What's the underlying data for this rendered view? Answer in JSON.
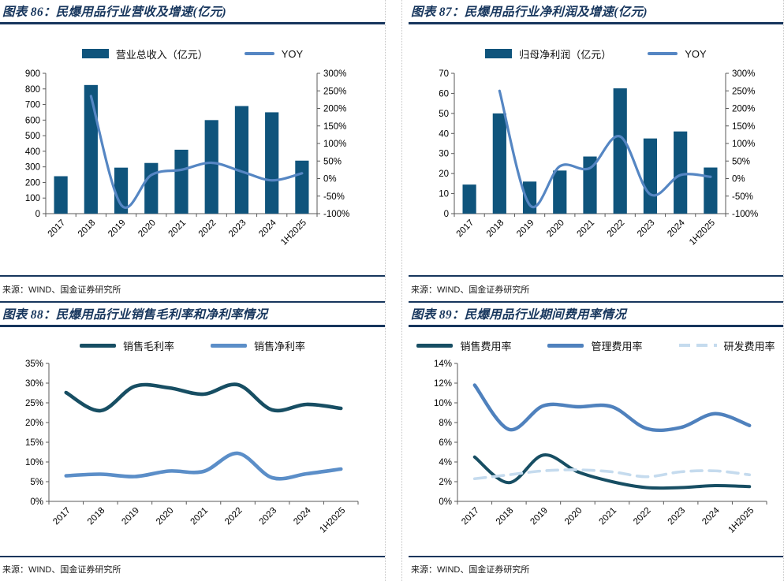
{
  "page": {
    "border_color": "#17365d",
    "divider_color": "#c4c4c4",
    "background": "#ffffff"
  },
  "source_label": "来源：WIND、国金证券研究所",
  "chart_data": [
    {
      "title": "图表 86：民爆用品行业营收及增速(亿元)",
      "source": "来源：WIND、国金证券研究所",
      "type": "bar-line",
      "categories": [
        "2017",
        "2018",
        "2019",
        "2020",
        "2021",
        "2022",
        "2023",
        "2024",
        "1H2025"
      ],
      "left_axis": {
        "min": 0,
        "max": 900,
        "step": 100,
        "format": "number"
      },
      "right_axis": {
        "min": -100,
        "max": 300,
        "step": 50,
        "format": "percent"
      },
      "legend_position": "top",
      "grid": false,
      "series": [
        {
          "name": "营业总收入（亿元）",
          "type": "bar",
          "axis": "left",
          "color": "#0f547c",
          "thickness": 0,
          "values": [
            240,
            825,
            295,
            325,
            410,
            600,
            690,
            650,
            340
          ]
        },
        {
          "name": "YOY",
          "type": "line",
          "axis": "right",
          "color": "#5586c3",
          "thickness": 3.2,
          "dash": false,
          "values": [
            null,
            235,
            -75,
            10,
            25,
            45,
            20,
            -5,
            15
          ]
        }
      ]
    },
    {
      "title": "图表 87：民爆用品行业净利润及增速(亿元)",
      "source": "来源：WIND、国金证券研究所",
      "type": "bar-line",
      "categories": [
        "2017",
        "2018",
        "2019",
        "2020",
        "2021",
        "2022",
        "2023",
        "2024",
        "1H2025"
      ],
      "left_axis": {
        "min": 0,
        "max": 70,
        "step": 10,
        "format": "number"
      },
      "right_axis": {
        "min": -100,
        "max": 300,
        "step": 50,
        "format": "percent"
      },
      "legend_position": "top",
      "grid": false,
      "series": [
        {
          "name": "归母净利润（亿元）",
          "type": "bar",
          "axis": "left",
          "color": "#0f547c",
          "thickness": 0,
          "values": [
            14.5,
            50,
            16,
            21.5,
            28.5,
            62.5,
            37.5,
            41,
            23
          ]
        },
        {
          "name": "YOY",
          "type": "line",
          "axis": "right",
          "color": "#5586c3",
          "thickness": 3.2,
          "dash": false,
          "values": [
            null,
            250,
            -75,
            35,
            30,
            120,
            -45,
            10,
            5
          ]
        }
      ]
    },
    {
      "title": "图表 88：民爆用品行业销售毛利率和净利率情况",
      "source": "来源：WIND、国金证券研究所",
      "type": "line",
      "categories": [
        "2017",
        "2018",
        "2019",
        "2020",
        "2021",
        "2022",
        "2023",
        "2024",
        "1H2025"
      ],
      "left_axis": {
        "min": 0,
        "max": 35,
        "step": 5,
        "format": "percent"
      },
      "legend_position": "top",
      "grid": false,
      "series": [
        {
          "name": "销售毛利率",
          "type": "line",
          "axis": "left",
          "color": "#174e63",
          "thickness": 4.6,
          "dash": false,
          "values": [
            27.6,
            23.0,
            29.2,
            28.8,
            27.2,
            29.6,
            23.2,
            24.6,
            23.6
          ]
        },
        {
          "name": "销售净利率",
          "type": "line",
          "axis": "left",
          "color": "#5b8ec8",
          "thickness": 4.6,
          "dash": false,
          "values": [
            6.5,
            6.9,
            6.3,
            7.7,
            7.6,
            12.2,
            6.0,
            7.0,
            8.2
          ]
        }
      ]
    },
    {
      "title": "图表 89：民爆用品行业期间费用率情况",
      "source": "来源：WIND、国金证券研究所",
      "type": "line",
      "categories": [
        "2017",
        "2018",
        "2019",
        "2020",
        "2021",
        "2022",
        "2023",
        "2024",
        "1H2025"
      ],
      "left_axis": {
        "min": 0,
        "max": 14,
        "step": 2,
        "format": "percent"
      },
      "legend_position": "top",
      "grid": false,
      "series": [
        {
          "name": "销售费用率",
          "type": "line",
          "axis": "left",
          "color": "#174e63",
          "thickness": 4.0,
          "dash": false,
          "values": [
            4.5,
            1.9,
            4.7,
            3.0,
            2.0,
            1.4,
            1.4,
            1.6,
            1.5
          ]
        },
        {
          "name": "管理费用率",
          "type": "line",
          "axis": "left",
          "color": "#4f81bd",
          "thickness": 4.4,
          "dash": false,
          "values": [
            11.8,
            7.3,
            9.7,
            9.6,
            9.6,
            7.4,
            7.5,
            8.9,
            7.7
          ]
        },
        {
          "name": "研发费用率",
          "type": "line",
          "axis": "left",
          "color": "#c5dbee",
          "thickness": 3.6,
          "dash": true,
          "values": [
            2.3,
            2.7,
            3.1,
            3.2,
            3.0,
            2.5,
            3.0,
            3.1,
            2.7
          ]
        }
      ]
    }
  ]
}
